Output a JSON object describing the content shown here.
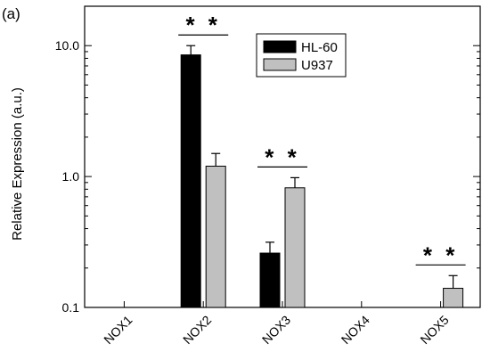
{
  "chart_data": {
    "type": "bar",
    "panel_label": "(a)",
    "ylabel": "Relative Expression (a.u.)",
    "xlabel": "",
    "y_scale": "log",
    "ylim": [
      0.1,
      20
    ],
    "y_ticks": [
      {
        "value": 0.1,
        "label": "0.1"
      },
      {
        "value": 1,
        "label": "1.0"
      },
      {
        "value": 10,
        "label": "10.0"
      }
    ],
    "categories": [
      "NOX1",
      "NOX2",
      "NOX3",
      "NOX4",
      "NOX5"
    ],
    "series": [
      {
        "name": "HL-60",
        "color": "#000000",
        "values": [
          null,
          8.5,
          0.26,
          null,
          null
        ],
        "error": [
          null,
          1.5,
          0.055,
          null,
          null
        ]
      },
      {
        "name": "U937",
        "color": "#c0c0c0",
        "values": [
          null,
          1.2,
          0.82,
          null,
          0.14
        ],
        "error": [
          null,
          0.3,
          0.16,
          null,
          0.035
        ]
      }
    ],
    "significance": [
      {
        "category": "NOX2",
        "label": "* *"
      },
      {
        "category": "NOX3",
        "label": "* *"
      },
      {
        "category": "NOX5",
        "label": "* *"
      }
    ],
    "legend_position": "top-right",
    "grid": false
  }
}
